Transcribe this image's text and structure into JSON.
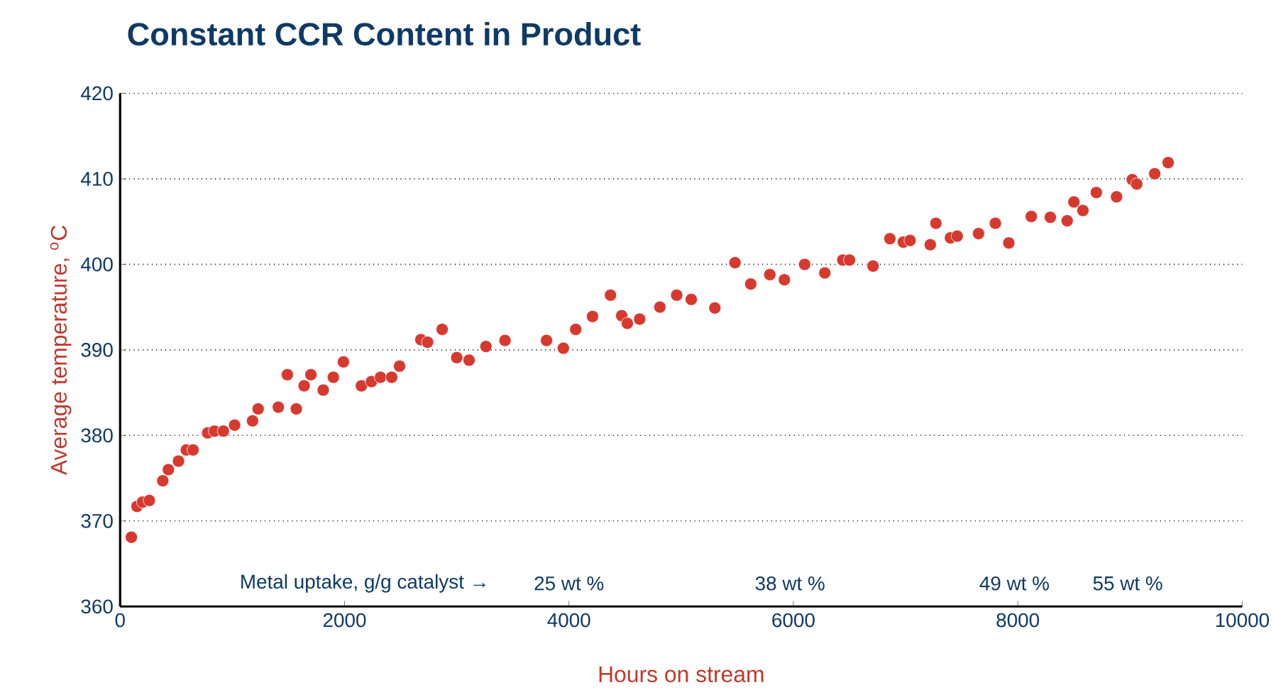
{
  "chart_data": {
    "type": "scatter",
    "title": "Constant CCR Content in Product",
    "xlabel": "Hours on stream",
    "ylabel": "Average temperature, $^{o}$C",
    "x": [
      100,
      150,
      200,
      260,
      380,
      430,
      520,
      590,
      650,
      780,
      840,
      920,
      1020,
      1180,
      1230,
      1410,
      1490,
      1570,
      1640,
      1700,
      1810,
      1900,
      1990,
      2150,
      2240,
      2320,
      2420,
      2490,
      2680,
      2740,
      2870,
      3000,
      3110,
      3260,
      3430,
      3800,
      3950,
      4060,
      4210,
      4370,
      4470,
      4520,
      4630,
      4810,
      4960,
      5090,
      5300,
      5480,
      5620,
      5790,
      5920,
      6100,
      6280,
      6440,
      6500,
      6710,
      6860,
      6980,
      7040,
      7220,
      7270,
      7400,
      7460,
      7650,
      7800,
      7920,
      8120,
      8290,
      8440,
      8500,
      8580,
      8700,
      8880,
      9020,
      9060,
      9220,
      9340
    ],
    "values": [
      368.1,
      371.7,
      372.2,
      372.4,
      374.7,
      376.0,
      377.0,
      378.3,
      378.3,
      380.3,
      380.5,
      380.5,
      381.2,
      381.7,
      383.1,
      383.3,
      387.1,
      383.1,
      385.8,
      387.1,
      385.3,
      386.8,
      388.6,
      385.8,
      386.3,
      386.8,
      386.8,
      388.1,
      391.2,
      390.9,
      392.4,
      389.1,
      388.8,
      390.4,
      391.1,
      391.1,
      390.2,
      392.4,
      393.9,
      396.4,
      394.0,
      393.1,
      393.6,
      395.0,
      396.4,
      395.9,
      394.9,
      400.2,
      397.7,
      398.8,
      398.2,
      400.0,
      399.0,
      400.5,
      400.5,
      399.8,
      403.0,
      402.6,
      402.8,
      402.3,
      404.8,
      403.1,
      403.3,
      403.6,
      404.8,
      402.5,
      405.6,
      405.5,
      405.1,
      407.3,
      406.3,
      408.4,
      407.9,
      409.9,
      409.4,
      410.6,
      411.9
    ],
    "color": "#d63a2f",
    "marker": "circle",
    "xlim": [
      0,
      10000
    ],
    "xticks": [
      0,
      2000,
      4000,
      6000,
      8000,
      10000
    ],
    "ylim": [
      360,
      420
    ],
    "yticks": [
      360,
      370,
      380,
      390,
      400,
      410,
      420
    ],
    "grid": "y",
    "annotations": [
      "Metal uptake, g/g catalyst →",
      "25 wt %",
      "38 wt %",
      "49 wt %",
      "55 wt %"
    ]
  }
}
